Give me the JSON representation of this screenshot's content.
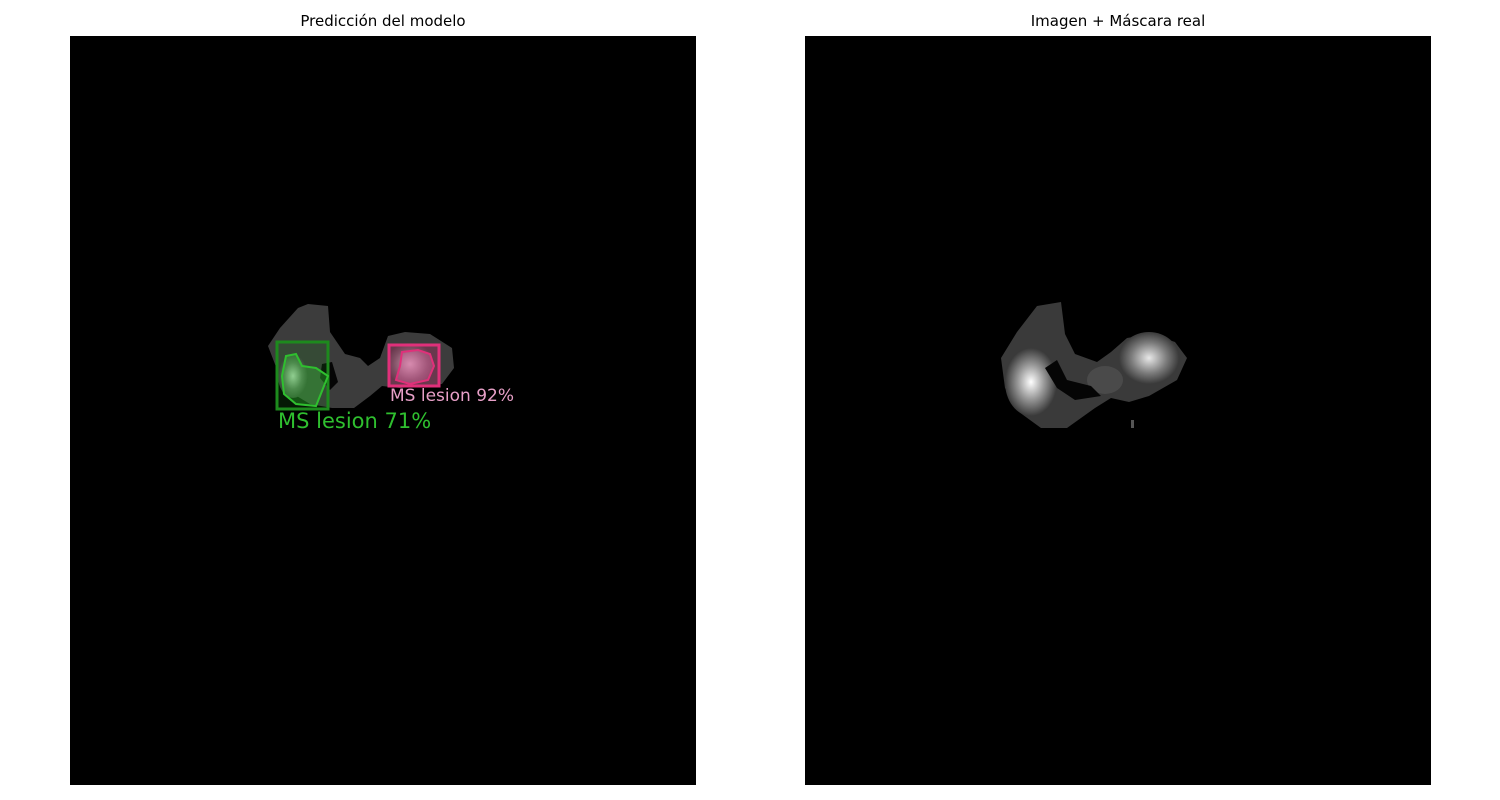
{
  "panels": {
    "left": {
      "title": "Predicción del modelo",
      "detections": [
        {
          "label": "MS lesion 71%",
          "color": "#2fbf2f",
          "box_color": "#1d8a1d"
        },
        {
          "label": "MS lesion 92%",
          "color": "#e8a0c8",
          "box_color": "#e0307a"
        }
      ]
    },
    "right": {
      "title": "Imagen + Máscara real"
    }
  }
}
